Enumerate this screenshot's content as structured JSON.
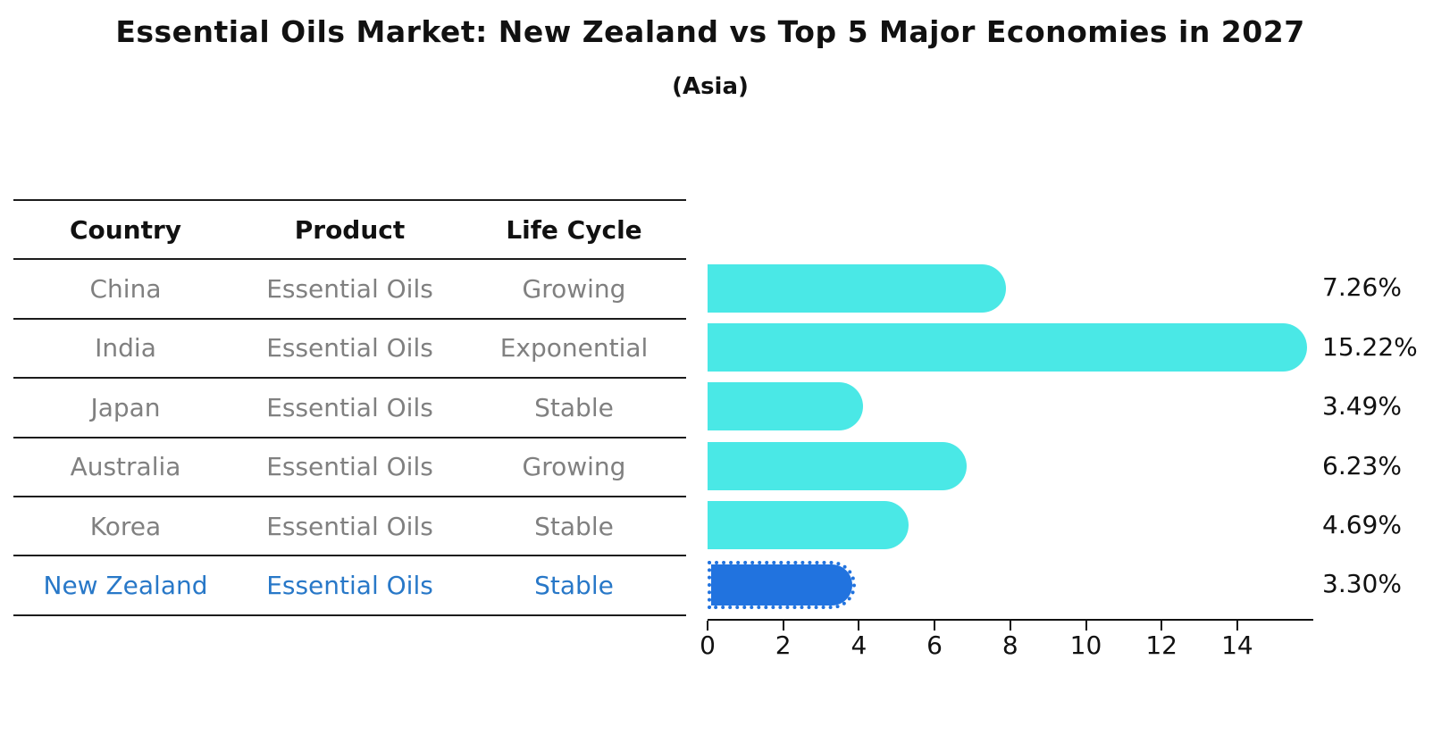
{
  "title": "Essential Oils Market: New Zealand vs Top 5 Major Economies in 2027",
  "subtitle": "(Asia)",
  "table": {
    "headers": {
      "country": "Country",
      "product": "Product",
      "life_cycle": "Life Cycle"
    },
    "rows": [
      {
        "country": "China",
        "product": "Essential Oils",
        "life_cycle": "Growing"
      },
      {
        "country": "India",
        "product": "Essential Oils",
        "life_cycle": "Exponential"
      },
      {
        "country": "Japan",
        "product": "Essential Oils",
        "life_cycle": "Stable"
      },
      {
        "country": "Australia",
        "product": "Essential Oils",
        "life_cycle": "Growing"
      },
      {
        "country": "Korea",
        "product": "Essential Oils",
        "life_cycle": "Stable"
      },
      {
        "country": "New Zealand",
        "product": "Essential Oils",
        "life_cycle": "Stable"
      }
    ]
  },
  "chart_data": {
    "type": "bar",
    "orientation": "horizontal",
    "title": "Essential Oils Market: New Zealand vs Top 5 Major Economies in 2027",
    "subtitle": "(Asia)",
    "categories": [
      "China",
      "India",
      "Japan",
      "Australia",
      "Korea",
      "New Zealand"
    ],
    "values": [
      7.26,
      15.22,
      3.49,
      6.23,
      4.69,
      3.3
    ],
    "value_labels": [
      "7.26%",
      "15.22%",
      "3.49%",
      "6.23%",
      "4.69%",
      "3.30%"
    ],
    "x_ticks": [
      0,
      2,
      4,
      6,
      8,
      10,
      12,
      14
    ],
    "xlim": [
      0,
      16
    ],
    "grid": false,
    "legend": false,
    "highlight_index": 5,
    "bar_color": "#4AE8E6",
    "highlight_color": "#2173DF",
    "highlight_text_color": "#2878C8",
    "row_text_color": "#808080"
  }
}
